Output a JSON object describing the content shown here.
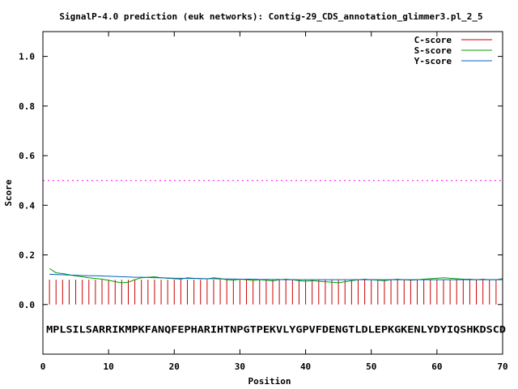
{
  "chart_data": {
    "type": "line",
    "title": "SignalP-4.0 prediction (euk networks): Contig-29_CDS_annotation_glimmer3.pl_2_5",
    "xlabel": "Position",
    "ylabel": "Score",
    "xlim": [
      0,
      70
    ],
    "ylim": [
      -0.2,
      1.1
    ],
    "xticks": [
      0,
      10,
      20,
      30,
      40,
      50,
      60,
      70
    ],
    "yticks": [
      0.0,
      0.2,
      0.4,
      0.6,
      0.8,
      1.0
    ],
    "xtick_labels": [
      "0",
      "10",
      "20",
      "30",
      "40",
      "50",
      "60",
      "70"
    ],
    "ytick_labels": [
      "0.0",
      "0.2",
      "0.4",
      "0.6",
      "0.8",
      "1.0"
    ],
    "legend_position": "top-right",
    "threshold": 0.5,
    "sequence": "MPLSILSARRIKMPKFANQFEPHARIHTNPGTPEKVLYGPVFDENGTLDLEPKGKENLYDYIQSHKDSCD",
    "positions": [
      1,
      2,
      3,
      4,
      5,
      6,
      7,
      8,
      9,
      10,
      11,
      12,
      13,
      14,
      15,
      16,
      17,
      18,
      19,
      20,
      21,
      22,
      23,
      24,
      25,
      26,
      27,
      28,
      29,
      30,
      31,
      32,
      33,
      34,
      35,
      36,
      37,
      38,
      39,
      40,
      41,
      42,
      43,
      44,
      45,
      46,
      47,
      48,
      49,
      50,
      51,
      52,
      53,
      54,
      55,
      56,
      57,
      58,
      59,
      60,
      61,
      62,
      63,
      64,
      65,
      66,
      67,
      68,
      69,
      70
    ],
    "series": [
      {
        "name": "C-score",
        "color": "#cc0000",
        "style": "impulse",
        "values": [
          0.1,
          0.1,
          0.1,
          0.1,
          0.1,
          0.1,
          0.1,
          0.1,
          0.1,
          0.1,
          0.1,
          0.1,
          0.1,
          0.1,
          0.1,
          0.1,
          0.1,
          0.1,
          0.1,
          0.1,
          0.1,
          0.1,
          0.1,
          0.1,
          0.1,
          0.1,
          0.1,
          0.1,
          0.1,
          0.1,
          0.1,
          0.1,
          0.1,
          0.1,
          0.1,
          0.1,
          0.1,
          0.1,
          0.1,
          0.1,
          0.1,
          0.1,
          0.1,
          0.1,
          0.1,
          0.1,
          0.1,
          0.1,
          0.1,
          0.1,
          0.1,
          0.1,
          0.1,
          0.1,
          0.1,
          0.1,
          0.1,
          0.1,
          0.1,
          0.1,
          0.1,
          0.1,
          0.1,
          0.1,
          0.1,
          0.1,
          0.1,
          0.1,
          0.1,
          0.1
        ]
      },
      {
        "name": "S-score",
        "color": "#00a000",
        "style": "line",
        "values": [
          0.145,
          0.128,
          0.125,
          0.12,
          0.115,
          0.112,
          0.108,
          0.105,
          0.102,
          0.098,
          0.092,
          0.088,
          0.09,
          0.1,
          0.108,
          0.11,
          0.112,
          0.108,
          0.106,
          0.104,
          0.102,
          0.108,
          0.106,
          0.105,
          0.103,
          0.108,
          0.105,
          0.1,
          0.098,
          0.102,
          0.1,
          0.097,
          0.1,
          0.098,
          0.095,
          0.1,
          0.102,
          0.1,
          0.096,
          0.094,
          0.096,
          0.094,
          0.092,
          0.09,
          0.088,
          0.092,
          0.096,
          0.1,
          0.102,
          0.1,
          0.098,
          0.096,
          0.1,
          0.102,
          0.1,
          0.098,
          0.1,
          0.102,
          0.104,
          0.106,
          0.108,
          0.106,
          0.104,
          0.102,
          0.102,
          0.1,
          0.102,
          0.1,
          0.1,
          0.104
        ]
      },
      {
        "name": "Y-score",
        "color": "#0060c0",
        "style": "line",
        "values": [
          0.122,
          0.121,
          0.12,
          0.119,
          0.118,
          0.117,
          0.116,
          0.116,
          0.115,
          0.114,
          0.113,
          0.112,
          0.111,
          0.11,
          0.11,
          0.109,
          0.108,
          0.108,
          0.107,
          0.106,
          0.106,
          0.105,
          0.105,
          0.104,
          0.104,
          0.104,
          0.103,
          0.103,
          0.103,
          0.102,
          0.102,
          0.102,
          0.101,
          0.101,
          0.101,
          0.101,
          0.1,
          0.1,
          0.1,
          0.1,
          0.1,
          0.1,
          0.1,
          0.1,
          0.1,
          0.1,
          0.1,
          0.1,
          0.1,
          0.1,
          0.1,
          0.1,
          0.1,
          0.1,
          0.1,
          0.1,
          0.1,
          0.1,
          0.1,
          0.1,
          0.1,
          0.1,
          0.1,
          0.1,
          0.1,
          0.1,
          0.1,
          0.1,
          0.1,
          0.1
        ]
      }
    ]
  }
}
